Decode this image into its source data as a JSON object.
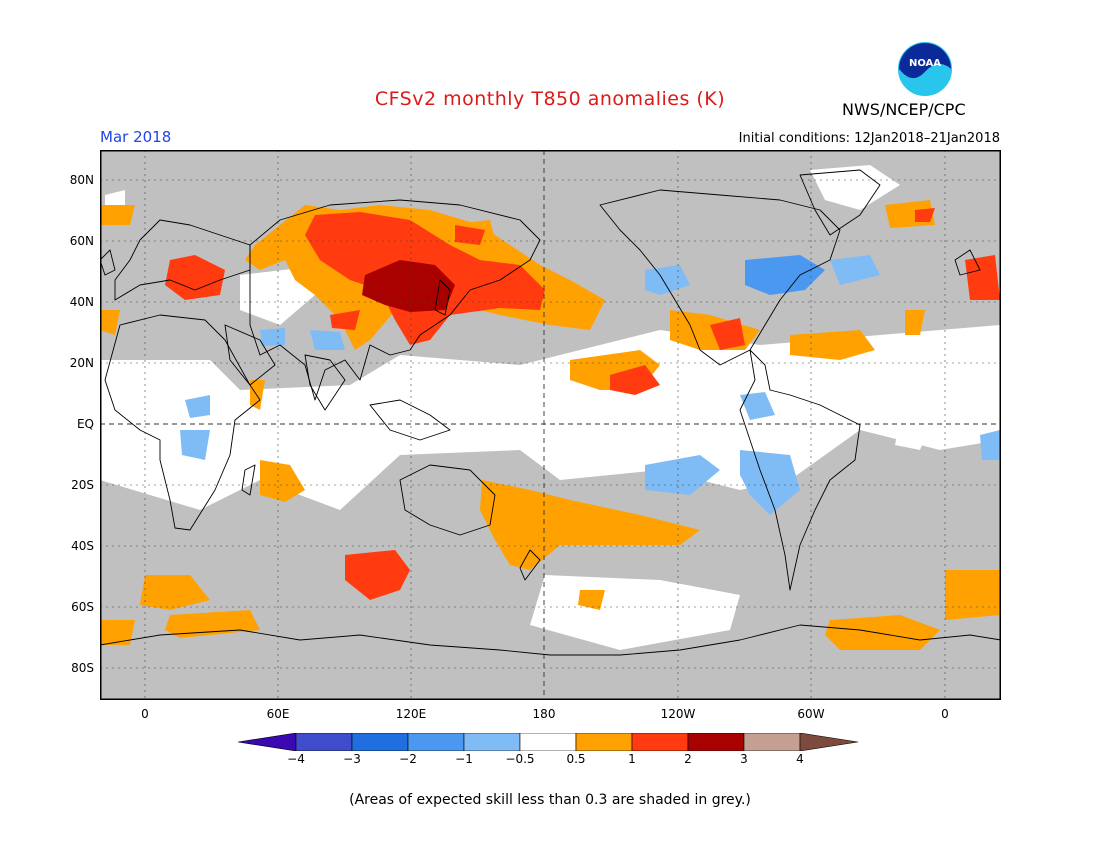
{
  "header": {
    "title": "CFSv2 monthly T850 anomalies (K)",
    "agency": "NWS/NCEP/CPC",
    "logo_text": "NOAA",
    "period": "Mar 2018",
    "initial_conditions": "Initial conditions: 12Jan2018–21Jan2018"
  },
  "map": {
    "projection": "cylindrical equidistant",
    "lat_labels": [
      "80N",
      "60N",
      "40N",
      "20N",
      "EQ",
      "20S",
      "40S",
      "60S",
      "80S"
    ],
    "lon_labels": [
      "0",
      "60E",
      "120E",
      "180",
      "120W",
      "60W",
      "0"
    ],
    "skill_mask_color": "#c0c0c0",
    "no_signal_color": "#ffffff"
  },
  "legend": {
    "tick_labels": [
      "−4",
      "−3",
      "−2",
      "−1",
      "−0.5",
      "0.5",
      "1",
      "2",
      "3",
      "4"
    ],
    "colors": [
      "#3a09b1",
      "#3f4ccc",
      "#1f6fe0",
      "#4a98f0",
      "#7fbbf5",
      "#ffffff",
      "#ffa100",
      "#ff3b0f",
      "#a90000",
      "#c4a092",
      "#7d4b3d"
    ],
    "note": "(Areas of expected skill less than 0.3 are shaded in grey.)"
  }
}
